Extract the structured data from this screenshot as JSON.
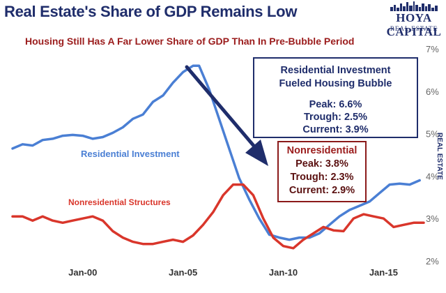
{
  "header": {
    "title": "Real Estate's Share of GDP Remains Low",
    "subtitle": "Housing Still Has A Far Lower Share of GDP Than In Pre-Bubble Period"
  },
  "logo": {
    "main": "HOYA CAPITAL",
    "sub": "REAL ESTATE",
    "side": "REAL ESTATE"
  },
  "callouts": {
    "residential": {
      "heading_line1": "Residential Investment",
      "heading_line2": "Fueled Housing Bubble",
      "peak": "Peak: 6.6%",
      "trough": "Trough: 2.5%",
      "current": "Current: 3.9%"
    },
    "nonresidential": {
      "heading": "Nonresidential",
      "peak": "Peak: 3.8%",
      "trough": "Trough: 2.3%",
      "current": "Current: 2.9%"
    }
  },
  "colors": {
    "residential": "#4a7fd4",
    "nonresidential": "#d9362b",
    "title": "#1f2d6b",
    "subtitle": "#9b1c1c",
    "arrow": "#1f2d6b"
  },
  "chart_data": {
    "type": "line",
    "title": "Real Estate's Share of GDP Remains Low",
    "subtitle": "Housing Still Has A Far Lower Share of GDP Than In Pre-Bubble Period",
    "xlabel": "",
    "ylabel": "",
    "x_ticks": [
      "Jan-00",
      "Jan-05",
      "Jan-10",
      "Jan-15"
    ],
    "x_tick_values": [
      2000,
      2005,
      2010,
      2015
    ],
    "y_ticks": [
      "2%",
      "3%",
      "4%",
      "5%",
      "6%",
      "7%"
    ],
    "y_tick_values": [
      2,
      3,
      4,
      5,
      6,
      7
    ],
    "xlim": [
      1996.5,
      2017
    ],
    "ylim": [
      2,
      7
    ],
    "grid": false,
    "series": [
      {
        "name": "Residential Investment",
        "color": "#4a7fd4",
        "points": [
          [
            1996.5,
            4.65
          ],
          [
            1997.0,
            4.75
          ],
          [
            1997.5,
            4.72
          ],
          [
            1998.0,
            4.85
          ],
          [
            1998.5,
            4.88
          ],
          [
            1999.0,
            4.95
          ],
          [
            1999.5,
            4.97
          ],
          [
            2000.0,
            4.95
          ],
          [
            2000.5,
            4.88
          ],
          [
            2001.0,
            4.92
          ],
          [
            2001.5,
            5.02
          ],
          [
            2002.0,
            5.15
          ],
          [
            2002.5,
            5.35
          ],
          [
            2003.0,
            5.45
          ],
          [
            2003.5,
            5.75
          ],
          [
            2004.0,
            5.9
          ],
          [
            2004.5,
            6.2
          ],
          [
            2005.0,
            6.45
          ],
          [
            2005.5,
            6.6
          ],
          [
            2005.8,
            6.6
          ],
          [
            2006.3,
            6.05
          ],
          [
            2006.8,
            5.35
          ],
          [
            2007.3,
            4.65
          ],
          [
            2007.8,
            3.95
          ],
          [
            2008.3,
            3.45
          ],
          [
            2008.8,
            3.0
          ],
          [
            2009.3,
            2.62
          ],
          [
            2009.8,
            2.55
          ],
          [
            2010.3,
            2.5
          ],
          [
            2010.8,
            2.55
          ],
          [
            2011.3,
            2.55
          ],
          [
            2011.8,
            2.65
          ],
          [
            2012.3,
            2.85
          ],
          [
            2012.8,
            3.05
          ],
          [
            2013.3,
            3.2
          ],
          [
            2013.8,
            3.3
          ],
          [
            2014.3,
            3.4
          ],
          [
            2014.8,
            3.6
          ],
          [
            2015.3,
            3.8
          ],
          [
            2015.8,
            3.82
          ],
          [
            2016.3,
            3.8
          ],
          [
            2016.8,
            3.9
          ]
        ]
      },
      {
        "name": "Nonresidential Structures",
        "color": "#d9362b",
        "points": [
          [
            1996.5,
            3.05
          ],
          [
            1997.0,
            3.05
          ],
          [
            1997.5,
            2.95
          ],
          [
            1998.0,
            3.05
          ],
          [
            1998.5,
            2.95
          ],
          [
            1999.0,
            2.9
          ],
          [
            1999.5,
            2.95
          ],
          [
            2000.0,
            3.0
          ],
          [
            2000.5,
            3.05
          ],
          [
            2001.0,
            2.95
          ],
          [
            2001.5,
            2.7
          ],
          [
            2002.0,
            2.55
          ],
          [
            2002.5,
            2.45
          ],
          [
            2003.0,
            2.4
          ],
          [
            2003.5,
            2.4
          ],
          [
            2004.0,
            2.45
          ],
          [
            2004.5,
            2.5
          ],
          [
            2005.0,
            2.45
          ],
          [
            2005.5,
            2.6
          ],
          [
            2006.0,
            2.85
          ],
          [
            2006.5,
            3.15
          ],
          [
            2007.0,
            3.55
          ],
          [
            2007.5,
            3.8
          ],
          [
            2008.0,
            3.8
          ],
          [
            2008.5,
            3.55
          ],
          [
            2009.0,
            3.0
          ],
          [
            2009.5,
            2.55
          ],
          [
            2010.0,
            2.35
          ],
          [
            2010.5,
            2.3
          ],
          [
            2011.0,
            2.5
          ],
          [
            2011.5,
            2.65
          ],
          [
            2012.0,
            2.8
          ],
          [
            2012.5,
            2.72
          ],
          [
            2013.0,
            2.7
          ],
          [
            2013.5,
            3.0
          ],
          [
            2014.0,
            3.1
          ],
          [
            2014.5,
            3.05
          ],
          [
            2015.0,
            3.0
          ],
          [
            2015.5,
            2.8
          ],
          [
            2016.0,
            2.85
          ],
          [
            2016.5,
            2.9
          ],
          [
            2017.0,
            2.9
          ]
        ]
      }
    ],
    "series_labels": [
      "Residential Investment",
      "Nonresidential Structures"
    ],
    "annotations": [
      "Residential Investment",
      "Fueled Housing Bubble",
      "Peak: 6.6%",
      "Trough: 2.5%",
      "Current: 3.9%",
      "Nonresidential",
      "Peak: 3.8%",
      "Trough: 2.3%",
      "Current: 2.9%"
    ]
  }
}
